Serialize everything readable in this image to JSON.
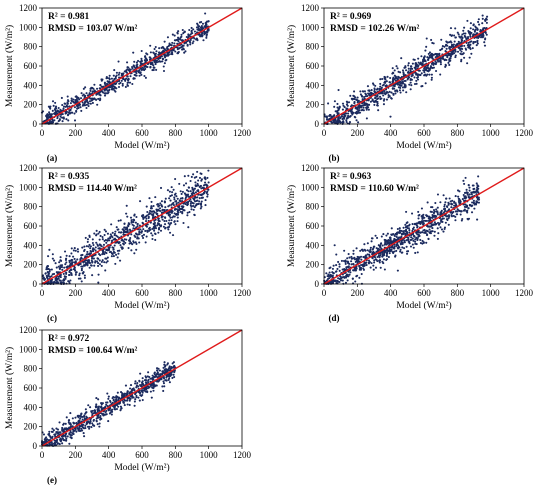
{
  "chart_data": [
    {
      "type": "scatter",
      "panel_label": "(a)",
      "xlabel": "Model (W/m²)",
      "ylabel": "Measurement (W/m²)",
      "xlim": [
        0,
        1200
      ],
      "ylim": [
        0,
        1200
      ],
      "xticks": [
        "0",
        "200",
        "400",
        "600",
        "800",
        "1000",
        "1200"
      ],
      "yticks": [
        "0",
        "200",
        "400",
        "600",
        "800",
        "1000",
        "1200"
      ],
      "annotations": [
        "R² = 0.981",
        "RMSD = 103.07 W/m²"
      ],
      "point_color": "#1b2a5e",
      "line_color": "#e01b1b",
      "reference_line": [
        [
          0,
          0
        ],
        [
          1200,
          1200
        ]
      ],
      "point_cloud": {
        "x_range": [
          0,
          1000
        ],
        "spread": 60,
        "seed": 11,
        "count": 900,
        "ymin_offset": 0
      },
      "grid": false
    },
    {
      "type": "scatter",
      "panel_label": "(b)",
      "xlabel": "Model (W/m²)",
      "ylabel": "Measurement (W/m²)",
      "xlim": [
        0,
        1200
      ],
      "ylim": [
        0,
        1200
      ],
      "xticks": [
        "0",
        "200",
        "400",
        "600",
        "800",
        "1000",
        "1200"
      ],
      "yticks": [
        "0",
        "200",
        "400",
        "600",
        "800",
        "1000",
        "1200"
      ],
      "annotations": [
        "R² = 0.969",
        "RMSD = 102.26 W/m²"
      ],
      "point_color": "#1b2a5e",
      "line_color": "#e01b1b",
      "reference_line": [
        [
          0,
          0
        ],
        [
          1200,
          1200
        ]
      ],
      "point_cloud": {
        "x_range": [
          0,
          980
        ],
        "spread": 80,
        "seed": 23,
        "count": 1000,
        "ymin_offset": 0
      },
      "grid": false
    },
    {
      "type": "scatter",
      "panel_label": "(c)",
      "xlabel": "Model (W/m²)",
      "ylabel": "Measurement (W/m²)",
      "xlim": [
        0,
        1200
      ],
      "ylim": [
        0,
        1200
      ],
      "xticks": [
        "0",
        "200",
        "400",
        "600",
        "800",
        "1000",
        "1200"
      ],
      "yticks": [
        "0",
        "200",
        "400",
        "600",
        "800",
        "1000",
        "1200"
      ],
      "annotations": [
        "R² = 0.935",
        "RMSD = 114.40 W/m²"
      ],
      "point_color": "#1b2a5e",
      "line_color": "#e01b1b",
      "reference_line": [
        [
          0,
          0
        ],
        [
          1200,
          1200
        ]
      ],
      "point_cloud": {
        "x_range": [
          0,
          1000
        ],
        "spread": 110,
        "seed": 37,
        "count": 1000,
        "ymin_offset": 0
      },
      "grid": false
    },
    {
      "type": "scatter",
      "panel_label": "(d)",
      "xlabel": "Model (W/m²)",
      "ylabel": "Measurement (W/m²)",
      "xlim": [
        0,
        1200
      ],
      "ylim": [
        0,
        1200
      ],
      "xticks": [
        "0",
        "200",
        "400",
        "600",
        "800",
        "1000",
        "1200"
      ],
      "yticks": [
        "0",
        "200",
        "400",
        "600",
        "800",
        "1000",
        "1200"
      ],
      "annotations": [
        "R² = 0.963",
        "RMSD = 110.60 W/m²"
      ],
      "point_color": "#1b2a5e",
      "line_color": "#e01b1b",
      "reference_line": [
        [
          0,
          0
        ],
        [
          1200,
          1200
        ]
      ],
      "point_cloud": {
        "x_range": [
          0,
          930
        ],
        "spread": 85,
        "seed": 51,
        "count": 1000,
        "ymin_offset": 0
      },
      "grid": false
    },
    {
      "type": "scatter",
      "panel_label": "(e)",
      "xlabel": "Model (W/m²)",
      "ylabel": "Measurement (W/m²)",
      "xlim": [
        0,
        1200
      ],
      "ylim": [
        0,
        1200
      ],
      "xticks": [
        "0",
        "200",
        "400",
        "600",
        "800",
        "1000",
        "1200"
      ],
      "yticks": [
        "0",
        "200",
        "400",
        "600",
        "800",
        "1000",
        "1200"
      ],
      "annotations": [
        "R² = 0.972",
        "RMSD = 100.64 W/m²"
      ],
      "point_color": "#1b2a5e",
      "line_color": "#e01b1b",
      "reference_line": [
        [
          0,
          0
        ],
        [
          1200,
          1200
        ]
      ],
      "point_cloud": {
        "x_range": [
          0,
          800
        ],
        "spread": 55,
        "seed": 67,
        "count": 800,
        "ymin_offset": 0
      },
      "grid": false
    }
  ]
}
